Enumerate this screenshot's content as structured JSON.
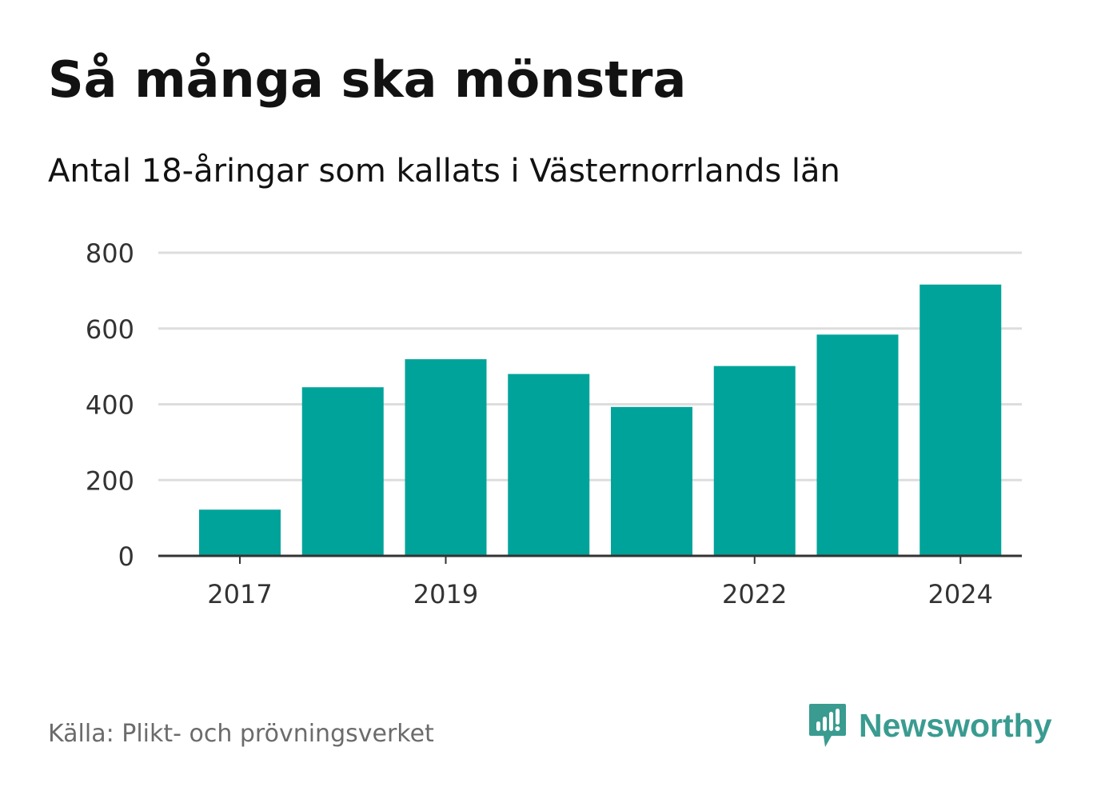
{
  "title": "Så många ska mönstra",
  "subtitle": "Antal 18-åringar som kallats i Västernorrlands län",
  "source": "Källa: Plikt- och prövningsverket",
  "brand": {
    "name": "Newsworthy",
    "icon": "newsworthy-logo-icon",
    "color": "#3a9b90"
  },
  "colors": {
    "bar": "#00a39a",
    "grid": "#dddddd",
    "axis": "#333333",
    "tick_text": "#333333"
  },
  "chart_data": {
    "type": "bar",
    "title": "Så många ska mönstra",
    "subtitle": "Antal 18-åringar som kallats i Västernorrlands län",
    "categories": [
      "2017",
      "2018",
      "2019",
      "2020",
      "2021",
      "2022",
      "2023",
      "2024"
    ],
    "values": [
      122,
      445,
      519,
      480,
      393,
      501,
      584,
      716
    ],
    "x_tick_labels": [
      "2017",
      "2019",
      "2022",
      "2024"
    ],
    "y_ticks": [
      "0",
      "200",
      "400",
      "600",
      "800"
    ],
    "ylim": [
      0,
      800
    ],
    "xlabel": "",
    "ylabel": "",
    "grid": true,
    "legend": "none"
  }
}
